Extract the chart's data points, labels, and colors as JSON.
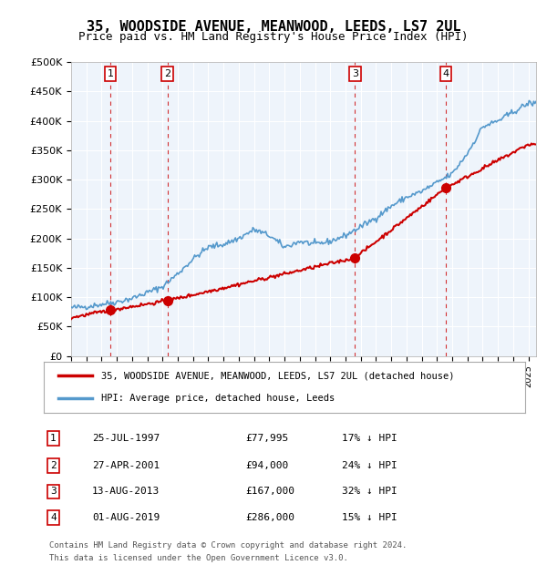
{
  "title": "35, WOODSIDE AVENUE, MEANWOOD, LEEDS, LS7 2UL",
  "subtitle": "Price paid vs. HM Land Registry's House Price Index (HPI)",
  "transactions": [
    {
      "num": 1,
      "date": "25-JUL-1997",
      "year": 1997.57,
      "price": 77995,
      "hpi_pct": "17% ↓ HPI"
    },
    {
      "num": 2,
      "date": "27-APR-2001",
      "year": 2001.32,
      "price": 94000,
      "hpi_pct": "24% ↓ HPI"
    },
    {
      "num": 3,
      "date": "13-AUG-2013",
      "year": 2013.62,
      "price": 167000,
      "hpi_pct": "32% ↓ HPI"
    },
    {
      "num": 4,
      "date": "01-AUG-2019",
      "year": 2019.58,
      "price": 286000,
      "hpi_pct": "15% ↓ HPI"
    }
  ],
  "legend_line1": "35, WOODSIDE AVENUE, MEANWOOD, LEEDS, LS7 2UL (detached house)",
  "legend_line2": "HPI: Average price, detached house, Leeds",
  "footer_line1": "Contains HM Land Registry data © Crown copyright and database right 2024.",
  "footer_line2": "This data is licensed under the Open Government Licence v3.0.",
  "red_color": "#cc0000",
  "blue_color": "#5599cc",
  "bg_color": "#ddeeff",
  "plot_bg": "#eef4fb",
  "ylim": [
    0,
    500000
  ],
  "xlim_start": 1995,
  "xlim_end": 2025.5
}
